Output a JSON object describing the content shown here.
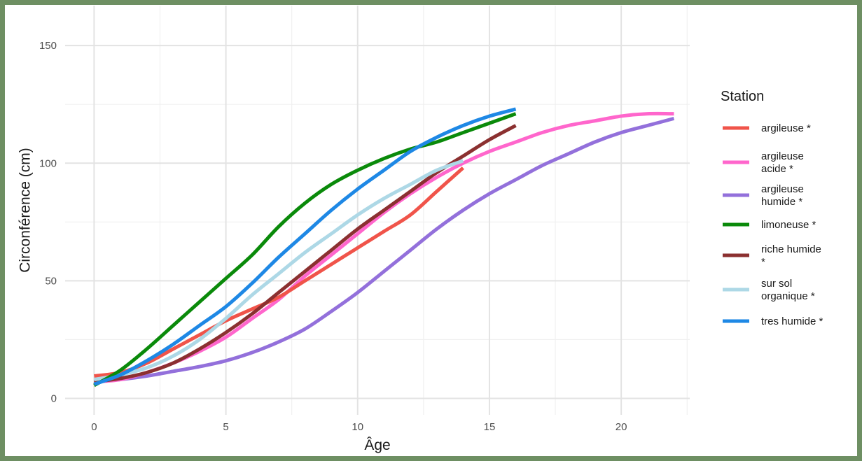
{
  "chart_data": {
    "type": "line",
    "title": "",
    "xlabel": "Âge",
    "ylabel": "Circonférence (cm)",
    "xlim": [
      -1.1,
      22.6
    ],
    "ylim": [
      -7,
      167
    ],
    "x_ticks": [
      0,
      5,
      10,
      15,
      20
    ],
    "x_tick_labels": [
      "0",
      "5",
      "10",
      "15",
      "20"
    ],
    "y_ticks": [
      0,
      50,
      100,
      150
    ],
    "y_tick_labels": [
      "0",
      "50",
      "100",
      "150"
    ],
    "grid": true,
    "legend": {
      "title": "Station",
      "position": "right",
      "entries": [
        {
          "lines": [
            "argileuse *"
          ],
          "color": "#f0544a"
        },
        {
          "lines": [
            "argileuse",
            "acide *"
          ],
          "color": "#ff66cc"
        },
        {
          "lines": [
            "argileuse",
            "humide *"
          ],
          "color": "#9370db"
        },
        {
          "lines": [
            "limoneuse *"
          ],
          "color": "#0a8a0a"
        },
        {
          "lines": [
            "riche humide",
            "*"
          ],
          "color": "#8b3030"
        },
        {
          "lines": [
            "sur sol",
            "organique *"
          ],
          "color": "#add8e6"
        },
        {
          "lines": [
            "tres humide *"
          ],
          "color": "#1e88e5"
        }
      ]
    },
    "draw_order": [
      2,
      1,
      0,
      4,
      5,
      3,
      6
    ],
    "series": [
      {
        "name": "argileuse *",
        "color": "#f0544a",
        "x": [
          0,
          1,
          2,
          3,
          4,
          5,
          6,
          7,
          8,
          9,
          10,
          11,
          12,
          13,
          14
        ],
        "y": [
          9.5,
          11,
          15,
          21,
          27,
          33,
          38,
          43,
          50,
          57,
          64,
          71,
          78,
          88,
          98
        ]
      },
      {
        "name": "argileuse acide *",
        "color": "#ff66cc",
        "x": [
          0,
          1,
          2,
          3,
          4,
          5,
          6,
          7,
          8,
          9,
          10,
          11,
          12,
          13,
          14,
          15,
          16,
          17,
          18,
          19,
          20,
          21,
          22
        ],
        "y": [
          7,
          8,
          11,
          15,
          20,
          26,
          34,
          42,
          52,
          61,
          70,
          79,
          87,
          94,
          100,
          105,
          109,
          113,
          116,
          118,
          120,
          121,
          121
        ]
      },
      {
        "name": "argileuse humide *",
        "color": "#9370db",
        "x": [
          0,
          1,
          2,
          3,
          4,
          5,
          6,
          7,
          8,
          9,
          10,
          11,
          12,
          13,
          14,
          15,
          16,
          17,
          18,
          19,
          20,
          21,
          22
        ],
        "y": [
          7,
          8,
          9.5,
          11.5,
          13.5,
          16,
          19.5,
          24,
          29.5,
          37,
          45,
          54,
          63,
          72,
          80,
          87,
          93,
          99,
          104,
          109,
          113,
          116,
          119
        ]
      },
      {
        "name": "limoneuse *",
        "color": "#0a8a0a",
        "x": [
          0,
          1,
          2,
          3,
          4,
          5,
          6,
          7,
          8,
          9,
          10,
          11,
          12,
          13,
          14,
          15,
          16
        ],
        "y": [
          5.5,
          12,
          21,
          31,
          41,
          51,
          61,
          73,
          83,
          91,
          97,
          102,
          106,
          109,
          113,
          117,
          121
        ]
      },
      {
        "name": "riche humide *",
        "color": "#8b3030",
        "x": [
          0,
          1,
          2,
          3,
          4,
          5,
          6,
          7,
          8,
          9,
          10,
          11,
          12,
          13,
          14,
          15,
          16
        ],
        "y": [
          7,
          8.5,
          11,
          15,
          21,
          28,
          36,
          45,
          54,
          63,
          72,
          80,
          88,
          96,
          103,
          110,
          116
        ]
      },
      {
        "name": "sur sol organique *",
        "color": "#add8e6",
        "x": [
          0,
          1,
          2,
          3,
          4,
          5,
          6,
          7,
          8,
          9,
          10,
          11,
          12,
          13,
          14
        ],
        "y": [
          8,
          10,
          13,
          18,
          25,
          34,
          44,
          53,
          62,
          70,
          78,
          85,
          91,
          97,
          101
        ]
      },
      {
        "name": "tres humide *",
        "color": "#1e88e5",
        "x": [
          0,
          1,
          2,
          3,
          4,
          5,
          6,
          7,
          8,
          9,
          10,
          11,
          12,
          13,
          14,
          15,
          16
        ],
        "y": [
          6,
          10,
          16,
          23,
          31,
          39,
          49,
          60,
          70,
          80,
          89,
          97,
          105,
          111,
          116,
          120,
          123
        ]
      }
    ]
  }
}
